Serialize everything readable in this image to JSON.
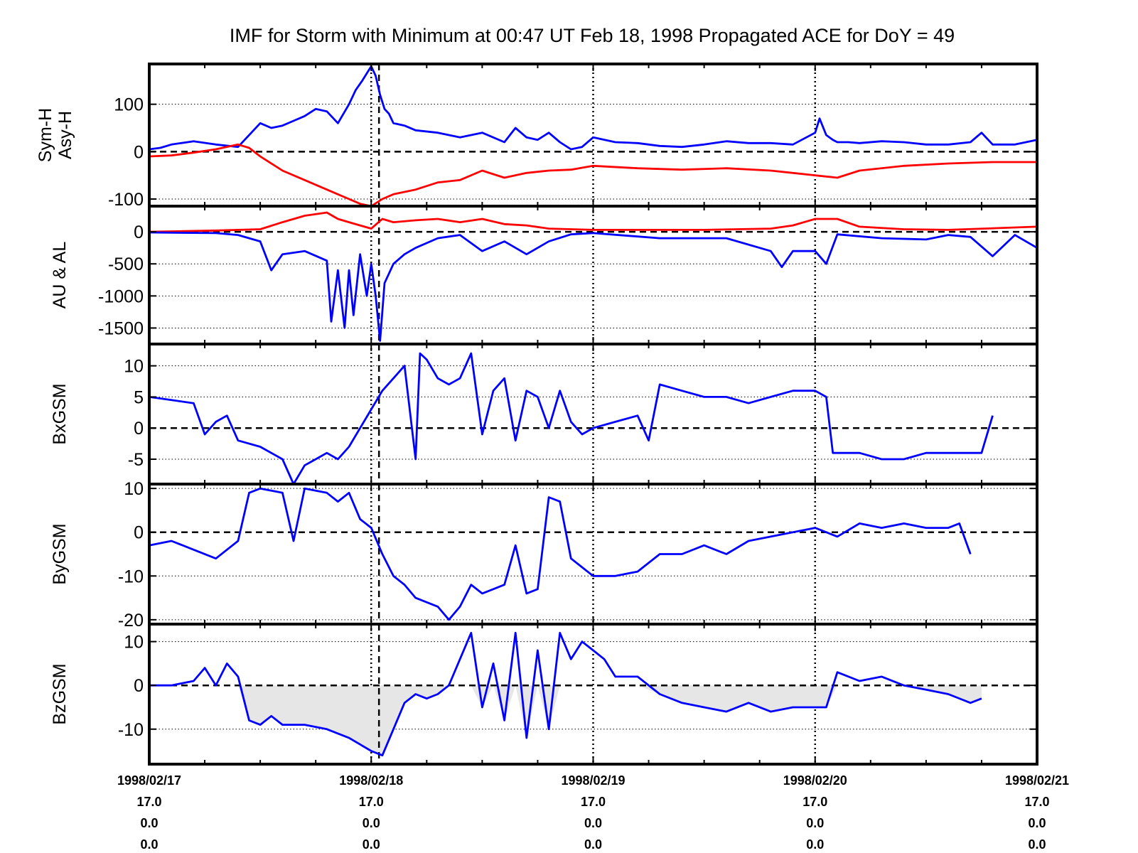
{
  "title": "IMF for Storm with Minimum at 00:47 UT Feb 18, 1998  Propagated ACE for DoY = 49",
  "colors": {
    "blue": "#0000ff",
    "red": "#ff0000",
    "navy": "#000080",
    "fill": "#e6e6e6",
    "frame": "#000000"
  },
  "chart_data": [
    {
      "type": "line",
      "ylabel": [
        "Sym-H",
        "Asy-H"
      ],
      "ylim": [
        -115,
        185
      ],
      "yticks": [
        -100,
        0,
        100
      ],
      "ytick_labels": [
        "-100",
        "0",
        "100"
      ],
      "series": [
        {
          "name": "Asy-H",
          "color": "#0000ff",
          "x": [
            0,
            0.05,
            0.1,
            0.2,
            0.3,
            0.4,
            0.5,
            0.55,
            0.6,
            0.65,
            0.7,
            0.75,
            0.8,
            0.85,
            0.9,
            0.93,
            0.96,
            0.98,
            1.0,
            1.02,
            1.04,
            1.06,
            1.08,
            1.1,
            1.15,
            1.2,
            1.3,
            1.4,
            1.5,
            1.6,
            1.65,
            1.7,
            1.75,
            1.8,
            1.85,
            1.9,
            1.95,
            2.0,
            2.1,
            2.2,
            2.3,
            2.4,
            2.5,
            2.6,
            2.7,
            2.8,
            2.9,
            3.0,
            3.02,
            3.05,
            3.08,
            3.1,
            3.15,
            3.2,
            3.3,
            3.4,
            3.5,
            3.6,
            3.7,
            3.75,
            3.8,
            3.9,
            4.0
          ],
          "y": [
            5,
            8,
            15,
            22,
            15,
            10,
            60,
            50,
            55,
            65,
            75,
            90,
            85,
            60,
            100,
            130,
            150,
            165,
            180,
            160,
            120,
            90,
            80,
            60,
            55,
            45,
            40,
            30,
            40,
            20,
            50,
            30,
            25,
            40,
            20,
            5,
            10,
            30,
            20,
            18,
            12,
            10,
            15,
            22,
            18,
            18,
            15,
            40,
            70,
            35,
            25,
            20,
            20,
            18,
            22,
            20,
            15,
            15,
            20,
            40,
            15,
            15,
            25
          ]
        },
        {
          "name": "Sym-H",
          "color": "#ff0000",
          "x": [
            0,
            0.1,
            0.2,
            0.3,
            0.4,
            0.45,
            0.5,
            0.6,
            0.7,
            0.8,
            0.9,
            0.95,
            1.0,
            1.05,
            1.1,
            1.2,
            1.3,
            1.4,
            1.5,
            1.6,
            1.7,
            1.8,
            1.9,
            2.0,
            2.2,
            2.4,
            2.6,
            2.8,
            2.9,
            3.0,
            3.1,
            3.2,
            3.4,
            3.6,
            3.8,
            4.0
          ],
          "y": [
            -10,
            -8,
            -2,
            5,
            15,
            8,
            -10,
            -40,
            -60,
            -80,
            -100,
            -110,
            -115,
            -100,
            -90,
            -80,
            -65,
            -60,
            -40,
            -55,
            -45,
            -40,
            -38,
            -30,
            -35,
            -38,
            -35,
            -40,
            -45,
            -50,
            -55,
            -40,
            -30,
            -25,
            -22,
            -22
          ]
        }
      ]
    },
    {
      "type": "line",
      "ylabel": [
        "AU & AL"
      ],
      "ylim": [
        -1750,
        400
      ],
      "yticks": [
        -1500,
        -1000,
        -500,
        0
      ],
      "ytick_labels": [
        "-1500",
        "-1000",
        "-500",
        "0"
      ],
      "series": [
        {
          "name": "AU",
          "color": "#ff0000",
          "x": [
            0,
            0.3,
            0.5,
            0.6,
            0.7,
            0.8,
            0.85,
            0.9,
            0.95,
            1.0,
            1.05,
            1.1,
            1.2,
            1.3,
            1.4,
            1.5,
            1.6,
            1.7,
            1.8,
            2.0,
            2.5,
            2.8,
            2.9,
            3.0,
            3.1,
            3.2,
            3.4,
            3.6,
            4.0
          ],
          "y": [
            0,
            20,
            40,
            150,
            250,
            300,
            200,
            150,
            100,
            50,
            200,
            150,
            180,
            200,
            150,
            200,
            120,
            100,
            50,
            30,
            30,
            50,
            100,
            200,
            200,
            80,
            40,
            30,
            80
          ]
        },
        {
          "name": "AL",
          "color": "#0000ff",
          "x": [
            0,
            0.3,
            0.4,
            0.5,
            0.55,
            0.6,
            0.7,
            0.8,
            0.82,
            0.85,
            0.88,
            0.9,
            0.92,
            0.95,
            0.98,
            1.0,
            1.02,
            1.04,
            1.06,
            1.1,
            1.15,
            1.2,
            1.3,
            1.4,
            1.5,
            1.6,
            1.7,
            1.8,
            1.9,
            2.0,
            2.3,
            2.6,
            2.8,
            2.85,
            2.9,
            3.0,
            3.05,
            3.1,
            3.3,
            3.5,
            3.6,
            3.7,
            3.8,
            3.9,
            4.0
          ],
          "y": [
            -10,
            -20,
            -50,
            -150,
            -600,
            -350,
            -300,
            -450,
            -1400,
            -600,
            -1500,
            -600,
            -1300,
            -350,
            -1000,
            -500,
            -1000,
            -1700,
            -800,
            -500,
            -350,
            -250,
            -100,
            -50,
            -300,
            -150,
            -350,
            -150,
            -40,
            -20,
            -100,
            -100,
            -300,
            -550,
            -300,
            -300,
            -500,
            -40,
            -100,
            -120,
            -50,
            -80,
            -380,
            -50,
            -250
          ]
        }
      ]
    },
    {
      "type": "line",
      "ylabel": [
        "BxGSM"
      ],
      "ylim": [
        -9,
        13.5
      ],
      "yticks": [
        -5,
        0,
        5,
        10
      ],
      "ytick_labels": [
        "-5",
        "0",
        "5",
        "10"
      ],
      "series": [
        {
          "name": "BxGSM",
          "color": "#0000ff",
          "x": [
            0,
            0.1,
            0.2,
            0.25,
            0.3,
            0.35,
            0.4,
            0.5,
            0.6,
            0.65,
            0.7,
            0.75,
            0.8,
            0.85,
            0.9,
            0.95,
            1.0,
            1.05,
            1.1,
            1.15,
            1.2,
            1.22,
            1.25,
            1.3,
            1.35,
            1.4,
            1.45,
            1.5,
            1.55,
            1.6,
            1.65,
            1.7,
            1.75,
            1.8,
            1.85,
            1.9,
            1.95,
            2.0,
            2.1,
            2.2,
            2.25,
            2.3,
            2.4,
            2.5,
            2.6,
            2.7,
            2.8,
            2.9,
            3.0,
            3.05,
            3.08,
            3.1,
            3.2,
            3.3,
            3.4,
            3.5,
            3.6,
            3.7,
            3.75,
            3.8
          ],
          "y": [
            5,
            4.5,
            4,
            -1,
            1,
            2,
            -2,
            -3,
            -5,
            -9,
            -6,
            -5,
            -4,
            -5,
            -3,
            0,
            3,
            6,
            8,
            10,
            -5,
            12,
            11,
            8,
            7,
            8,
            12,
            -1,
            6,
            8,
            -2,
            6,
            5,
            0,
            6,
            1,
            -1,
            0,
            1,
            2,
            -2,
            7,
            6,
            5,
            5,
            4,
            5,
            6,
            6,
            5,
            -4,
            -4,
            -4,
            -5,
            -5,
            -4,
            -4,
            -4,
            -4,
            2
          ]
        }
      ]
    },
    {
      "type": "line",
      "ylabel": [
        "ByGSM"
      ],
      "ylim": [
        -21,
        11
      ],
      "yticks": [
        -20,
        -10,
        0,
        10
      ],
      "ytick_labels": [
        "-20",
        "-10",
        "0",
        "10"
      ],
      "series": [
        {
          "name": "ByGSM",
          "color": "#0000ff",
          "x": [
            0,
            0.1,
            0.2,
            0.3,
            0.4,
            0.45,
            0.5,
            0.6,
            0.65,
            0.7,
            0.8,
            0.85,
            0.9,
            0.95,
            1.0,
            1.05,
            1.1,
            1.15,
            1.2,
            1.3,
            1.35,
            1.4,
            1.45,
            1.5,
            1.55,
            1.6,
            1.65,
            1.7,
            1.75,
            1.8,
            1.85,
            1.9,
            1.95,
            2.0,
            2.1,
            2.2,
            2.3,
            2.4,
            2.5,
            2.6,
            2.7,
            2.8,
            2.9,
            3.0,
            3.1,
            3.2,
            3.3,
            3.4,
            3.5,
            3.6,
            3.65,
            3.7
          ],
          "y": [
            -3,
            -2,
            -4,
            -6,
            -2,
            9,
            10,
            9,
            -2,
            10,
            9,
            7,
            9,
            3,
            1,
            -5,
            -10,
            -12,
            -15,
            -17,
            -20,
            -17,
            -12,
            -14,
            -13,
            -12,
            -3,
            -14,
            -13,
            8,
            7,
            -6,
            -8,
            -10,
            -10,
            -9,
            -5,
            -5,
            -3,
            -5,
            -2,
            -1,
            0,
            1,
            -1,
            2,
            1,
            2,
            1,
            1,
            2,
            -5
          ]
        }
      ]
    },
    {
      "type": "line",
      "ylabel": [
        "BzGSM"
      ],
      "ylim": [
        -18,
        14
      ],
      "yticks": [
        -10,
        0,
        10
      ],
      "ytick_labels": [
        "-10",
        "0",
        "10"
      ],
      "fill_below_zero": true,
      "series": [
        {
          "name": "BzGSM",
          "color": "#0000ff",
          "x": [
            0,
            0.1,
            0.2,
            0.25,
            0.3,
            0.35,
            0.4,
            0.45,
            0.5,
            0.55,
            0.6,
            0.7,
            0.8,
            0.9,
            1.0,
            1.05,
            1.1,
            1.15,
            1.2,
            1.25,
            1.3,
            1.35,
            1.4,
            1.45,
            1.5,
            1.55,
            1.6,
            1.65,
            1.7,
            1.75,
            1.8,
            1.85,
            1.9,
            1.95,
            2.0,
            2.05,
            2.1,
            2.2,
            2.3,
            2.4,
            2.5,
            2.6,
            2.7,
            2.8,
            2.9,
            3.0,
            3.05,
            3.1,
            3.2,
            3.3,
            3.4,
            3.5,
            3.6,
            3.7,
            3.75
          ],
          "y": [
            0,
            0,
            1,
            4,
            0,
            5,
            2,
            -8,
            -9,
            -7,
            -9,
            -9,
            -10,
            -12,
            -15,
            -16,
            -10,
            -4,
            -2,
            -3,
            -2,
            0,
            6,
            12,
            -5,
            5,
            -8,
            12,
            -12,
            8,
            -10,
            12,
            6,
            10,
            8,
            6,
            2,
            2,
            -2,
            -4,
            -5,
            -6,
            -4,
            -6,
            -5,
            -5,
            -5,
            3,
            1,
            2,
            0,
            -1,
            -2,
            -4,
            -3
          ]
        }
      ]
    }
  ],
  "xaxis": {
    "xlim": [
      0,
      4
    ],
    "ticks": [
      {
        "x": 0,
        "lines": [
          "1998/02/17",
          "17.0",
          "0.0",
          "0.0"
        ]
      },
      {
        "x": 1,
        "lines": [
          "1998/02/18",
          "17.0",
          "0.0",
          "0.0"
        ]
      },
      {
        "x": 2,
        "lines": [
          "1998/02/19",
          "17.0",
          "0.0",
          "0.0"
        ]
      },
      {
        "x": 3,
        "lines": [
          "1998/02/20",
          "17.0",
          "0.0",
          "0.0"
        ]
      },
      {
        "x": 4,
        "lines": [
          "1998/02/21",
          "17.0",
          "0.0",
          "0.0"
        ]
      }
    ],
    "storm_marker_x": 1.035
  }
}
